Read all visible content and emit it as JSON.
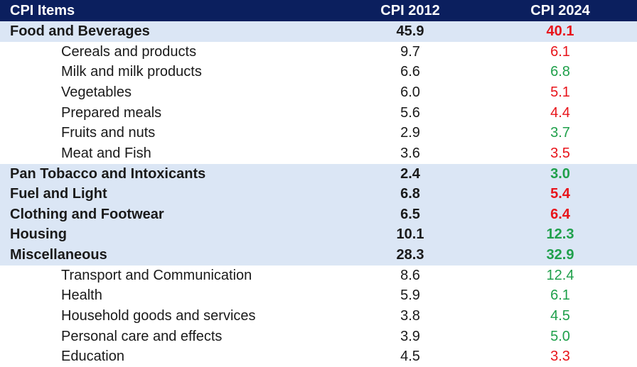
{
  "table": {
    "header": [
      "CPI Items",
      "CPI 2012",
      "CPI 2024"
    ],
    "header_background": "#0b1f5e",
    "highlight_background": "#dbe6f5",
    "rows": [
      {
        "cells": [
          "Food and Beverages",
          "45.9",
          "40.1"
        ],
        "main": true,
        "color": "#e8141b"
      },
      {
        "cells": [
          "Cereals and products",
          "9.7",
          "6.1"
        ],
        "main": false,
        "color": "#e8141b"
      },
      {
        "cells": [
          "Milk and milk products",
          "6.6",
          "6.8"
        ],
        "main": false,
        "color": "#1fa04b"
      },
      {
        "cells": [
          "Vegetables",
          "6.0",
          "5.1"
        ],
        "main": false,
        "color": "#e8141b"
      },
      {
        "cells": [
          "Prepared meals",
          "5.6",
          "4.4"
        ],
        "main": false,
        "color": "#e8141b"
      },
      {
        "cells": [
          "Fruits and nuts",
          "2.9",
          "3.7"
        ],
        "main": false,
        "color": "#1fa04b"
      },
      {
        "cells": [
          "Meat and Fish",
          "3.6",
          "3.5"
        ],
        "main": false,
        "color": "#e8141b"
      },
      {
        "cells": [
          "Pan Tobacco and Intoxicants",
          "2.4",
          "3.0"
        ],
        "main": true,
        "color": "#1fa04b"
      },
      {
        "cells": [
          "Fuel and Light",
          "6.8",
          "5.4"
        ],
        "main": true,
        "color": "#e8141b"
      },
      {
        "cells": [
          "Clothing and Footwear",
          "6.5",
          "6.4"
        ],
        "main": true,
        "color": "#e8141b"
      },
      {
        "cells": [
          "Housing",
          "10.1",
          "12.3"
        ],
        "main": true,
        "color": "#1fa04b"
      },
      {
        "cells": [
          "Miscellaneous",
          "28.3",
          "32.9"
        ],
        "main": true,
        "color": "#1fa04b"
      },
      {
        "cells": [
          "Transport and Communication",
          "8.6",
          "12.4"
        ],
        "main": false,
        "color": "#1fa04b"
      },
      {
        "cells": [
          "Health",
          "5.9",
          "6.1"
        ],
        "main": false,
        "color": "#1fa04b"
      },
      {
        "cells": [
          "Household goods and services",
          "3.8",
          "4.5"
        ],
        "main": false,
        "color": "#1fa04b"
      },
      {
        "cells": [
          "Personal care and effects",
          "3.9",
          "5.0"
        ],
        "main": false,
        "color": "#1fa04b"
      },
      {
        "cells": [
          "Education",
          "4.5",
          "3.3"
        ],
        "main": false,
        "color": "#e8141b"
      }
    ]
  }
}
